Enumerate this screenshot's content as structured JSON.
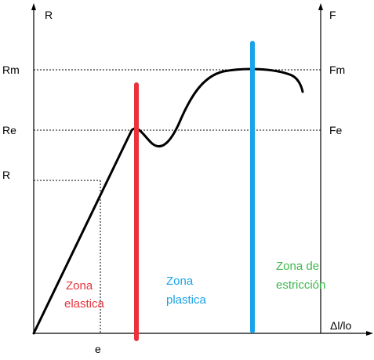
{
  "axes": {
    "left_axis_label": "R",
    "right_axis_label": "F",
    "x_axis_label": "Δl/lo"
  },
  "left_ticks": {
    "rm": "Rm",
    "re": "Re",
    "r": "R"
  },
  "right_ticks": {
    "fm": "Fm",
    "fe": "Fe"
  },
  "x_ticks": {
    "e": "e"
  },
  "zones": {
    "elastic": {
      "line1": "Zona",
      "line2": "elastica",
      "color": "#e8323c"
    },
    "plastic": {
      "line1": "Zona",
      "line2": "plastica",
      "color": "#1aa3e8"
    },
    "necking": {
      "line1": "Zona de",
      "line2": "estricción",
      "color": "#3cb84a"
    }
  },
  "colors": {
    "curve": "#000000",
    "axes": "#000000",
    "guides": "#000000"
  }
}
